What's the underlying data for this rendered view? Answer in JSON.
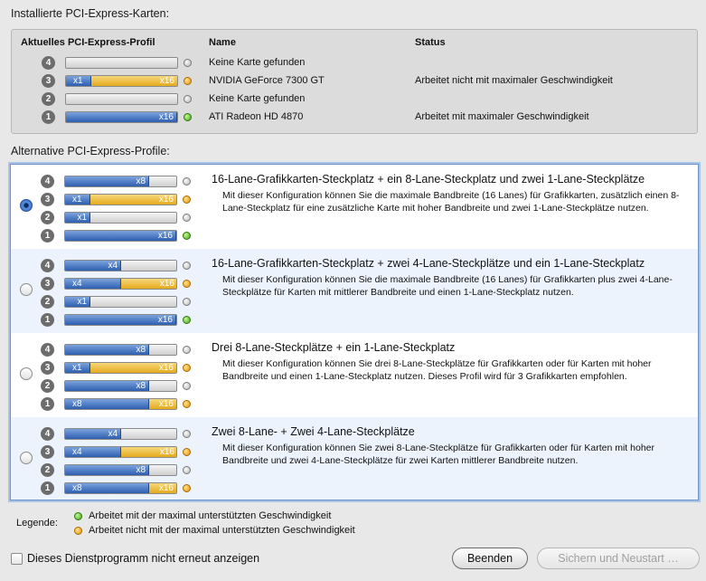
{
  "installed": {
    "section_title": "Installierte PCI-Express-Karten:",
    "headers": {
      "profile": "Aktuelles PCI-Express-Profil",
      "name": "Name",
      "status": "Status"
    },
    "slots": [
      {
        "num": "4",
        "segments": [],
        "dot": "grey",
        "name": "Keine Karte gefunden",
        "status": ""
      },
      {
        "num": "3",
        "segments": [
          {
            "label": "x1",
            "color": "blue",
            "fraction": 0.23
          },
          {
            "label": "x16",
            "color": "yellow",
            "fraction": 0.77
          }
        ],
        "dot": "orange",
        "name": "NVIDIA GeForce 7300 GT",
        "status": "Arbeitet nicht mit maximaler Geschwindigkeit"
      },
      {
        "num": "2",
        "segments": [],
        "dot": "grey",
        "name": "Keine Karte gefunden",
        "status": ""
      },
      {
        "num": "1",
        "segments": [
          {
            "label": "x16",
            "color": "blue",
            "fraction": 1.0
          }
        ],
        "dot": "green",
        "name": "ATI Radeon HD 4870",
        "status": "Arbeitet mit maximaler Geschwindigkeit"
      }
    ]
  },
  "alternatives": {
    "section_title": "Alternative PCI-Express-Profile:",
    "profiles": [
      {
        "selected": true,
        "title": "16-Lane-Grafikkarten-Steckplatz + ein 8-Lane-Steckplatz und zwei 1-Lane-Steckplätze",
        "description": "Mit dieser Konfiguration können Sie die maximale Bandbreite (16 Lanes) für Grafikkarten, zusätzlich einen 8-Lane-Steckplatz für eine zusätzliche Karte mit hoher Bandbreite und zwei 1-Lane-Steckplätze nutzen.",
        "slots": [
          {
            "num": "4",
            "segments": [
              {
                "label": "x8",
                "color": "blue",
                "fraction": 0.76
              }
            ],
            "dot": "grey"
          },
          {
            "num": "3",
            "segments": [
              {
                "label": "x1",
                "color": "blue",
                "fraction": 0.23
              },
              {
                "label": "x16",
                "color": "yellow",
                "fraction": 0.77
              }
            ],
            "dot": "orange"
          },
          {
            "num": "2",
            "segments": [
              {
                "label": "x1",
                "color": "blue",
                "fraction": 0.23
              }
            ],
            "dot": "grey"
          },
          {
            "num": "1",
            "segments": [
              {
                "label": "x16",
                "color": "blue",
                "fraction": 1.0
              }
            ],
            "dot": "green"
          }
        ]
      },
      {
        "selected": false,
        "title": "16-Lane-Grafikkarten-Steckplatz + zwei 4-Lane-Steckplätze und ein 1-Lane-Steckplatz",
        "description": "Mit dieser Konfiguration können Sie die maximale Bandbreite (16 Lanes) für Grafikkarten plus zwei 4-Lane-Steckplätze für Karten mit mittlerer Bandbreite und einen 1-Lane-Steckplatz nutzen.",
        "slots": [
          {
            "num": "4",
            "segments": [
              {
                "label": "x4",
                "color": "blue",
                "fraction": 0.5
              }
            ],
            "dot": "grey"
          },
          {
            "num": "3",
            "segments": [
              {
                "label": "x4",
                "color": "blue",
                "fraction": 0.5
              },
              {
                "label": "x16",
                "color": "yellow",
                "fraction": 0.5
              }
            ],
            "dot": "orange"
          },
          {
            "num": "2",
            "segments": [
              {
                "label": "x1",
                "color": "blue",
                "fraction": 0.23
              }
            ],
            "dot": "grey"
          },
          {
            "num": "1",
            "segments": [
              {
                "label": "x16",
                "color": "blue",
                "fraction": 1.0
              }
            ],
            "dot": "green"
          }
        ]
      },
      {
        "selected": false,
        "title": "Drei 8-Lane-Steckplätze + ein 1-Lane-Steckplatz",
        "description": "Mit dieser Konfiguration können Sie drei 8-Lane-Steckplätze für Grafikkarten oder für Karten mit hoher Bandbreite und einen 1-Lane-Steckplatz nutzen. Dieses Profil wird für 3 Grafikkarten empfohlen.",
        "slots": [
          {
            "num": "4",
            "segments": [
              {
                "label": "x8",
                "color": "blue",
                "fraction": 0.76
              }
            ],
            "dot": "grey"
          },
          {
            "num": "3",
            "segments": [
              {
                "label": "x1",
                "color": "blue",
                "fraction": 0.23
              },
              {
                "label": "x16",
                "color": "yellow",
                "fraction": 0.77
              }
            ],
            "dot": "orange"
          },
          {
            "num": "2",
            "segments": [
              {
                "label": "x8",
                "color": "blue",
                "fraction": 0.76
              }
            ],
            "dot": "grey"
          },
          {
            "num": "1",
            "segments": [
              {
                "label": "x8",
                "color": "blue",
                "fraction": 0.76
              },
              {
                "label": "x16",
                "color": "yellow",
                "fraction": 0.24
              }
            ],
            "dot": "orange"
          }
        ]
      },
      {
        "selected": false,
        "title": "Zwei 8-Lane- + Zwei 4-Lane-Steckplätze",
        "description": "Mit dieser Konfiguration können Sie zwei 8-Lane-Steckplätze für Grafikkarten oder für Karten mit hoher Bandbreite und zwei 4-Lane-Steckplätze für zwei Karten mittlerer Bandbreite nutzen.",
        "slots": [
          {
            "num": "4",
            "segments": [
              {
                "label": "x4",
                "color": "blue",
                "fraction": 0.5
              }
            ],
            "dot": "grey"
          },
          {
            "num": "3",
            "segments": [
              {
                "label": "x4",
                "color": "blue",
                "fraction": 0.5
              },
              {
                "label": "x16",
                "color": "yellow",
                "fraction": 0.5
              }
            ],
            "dot": "orange"
          },
          {
            "num": "2",
            "segments": [
              {
                "label": "x8",
                "color": "blue",
                "fraction": 0.76
              }
            ],
            "dot": "grey"
          },
          {
            "num": "1",
            "segments": [
              {
                "label": "x8",
                "color": "blue",
                "fraction": 0.76
              },
              {
                "label": "x16",
                "color": "yellow",
                "fraction": 0.24
              }
            ],
            "dot": "orange"
          }
        ]
      }
    ]
  },
  "legend": {
    "label": "Legende:",
    "items": [
      {
        "color": "green",
        "text": "Arbeitet mit der maximal unterstützten Geschwindigkeit"
      },
      {
        "color": "orange",
        "text": "Arbeitet nicht mit der maximal unterstützten Geschwindigkeit"
      }
    ]
  },
  "footer": {
    "checkbox_label": "Dieses Dienstprogramm nicht erneut anzeigen",
    "checkbox_checked": false,
    "quit_label": "Beenden",
    "restart_label": "Sichern und Neustart …"
  }
}
